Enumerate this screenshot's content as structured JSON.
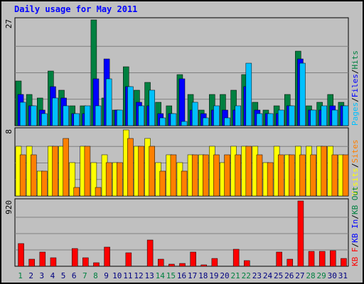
{
  "chart_data": {
    "type": "bar",
    "title": "Daily usage for May 2011",
    "categories": [
      "1",
      "2",
      "3",
      "4",
      "5",
      "6",
      "7",
      "8",
      "9",
      "10",
      "11",
      "12",
      "13",
      "14",
      "15",
      "16",
      "17",
      "18",
      "19",
      "20",
      "21",
      "22",
      "23",
      "24",
      "25",
      "26",
      "27",
      "28",
      "29",
      "30",
      "31"
    ],
    "weekend_days": [
      "1",
      "7",
      "8",
      "14",
      "15",
      "21",
      "22",
      "28",
      "29"
    ],
    "panels": [
      {
        "name": "hits-files-pages",
        "ymax_label": "27",
        "ylim": [
          0,
          27
        ],
        "legend": [
          "Pages",
          "/",
          "Files",
          "/",
          "Hits"
        ],
        "series": [
          {
            "name": "Hits",
            "color": "#008040",
            "values": [
              11.5,
              8,
              7,
              14,
              9,
              5,
              5,
              27,
              7,
              4,
              15,
              9,
              11,
              6,
              5,
              13,
              8,
              4,
              8,
              8,
              9,
              13,
              6,
              4,
              5,
              8,
              19,
              5,
              6,
              8,
              6
            ]
          },
          {
            "name": "Files",
            "color": "#0000ff",
            "values": [
              8,
              5,
              4,
              10,
              7,
              3,
              3,
              12,
              17,
              4,
              10,
              6,
              5,
              3,
              3,
              12,
              4,
              3,
              4,
              4,
              4,
              10,
              4,
              3,
              3,
              5,
              17,
              4,
              4,
              5,
              5
            ]
          },
          {
            "name": "Pages",
            "color": "#00c0ff",
            "values": [
              6,
              5,
              3,
              7,
              5,
              3,
              5,
              5,
              12,
              4,
              10,
              5,
              9,
              2,
              3,
              1,
              6,
              2,
              5,
              2,
              5,
              16,
              3,
              3,
              4,
              5,
              16,
              4,
              5,
              4,
              5
            ]
          }
        ]
      },
      {
        "name": "visits-sites",
        "ymax_label": "8",
        "ylim": [
          0,
          8
        ],
        "legend": [
          "Visits",
          "/",
          "Sites"
        ],
        "series": [
          {
            "name": "Visits",
            "color": "#ffff00",
            "values": [
              6,
              6,
              3,
              6,
              6,
              4,
              6,
              4,
              5,
              4,
              8,
              6,
              7,
              4,
              5,
              4,
              5,
              5,
              6,
              4,
              6,
              6,
              6,
              4,
              6,
              5,
              6,
              6,
              6,
              6,
              5
            ]
          },
          {
            "name": "Sites",
            "color": "#ff8000",
            "values": [
              5,
              5,
              3,
              6,
              7,
              1,
              6,
              1,
              4,
              4,
              7,
              6,
              6,
              3,
              5,
              3,
              5,
              5,
              5,
              5,
              5,
              6,
              5,
              4,
              5,
              5,
              5,
              5,
              6,
              5,
              5
            ]
          }
        ]
      },
      {
        "name": "kbytes",
        "ymax_label": "920",
        "ylim": [
          0,
          920
        ],
        "legend": [
          "KB F",
          "/",
          "KB In",
          "/",
          "KB Out"
        ],
        "series": [
          {
            "name": "KB F",
            "color": "#ff0000",
            "values": [
              315,
              100,
              200,
              120,
              0,
              250,
              120,
              50,
              270,
              0,
              190,
              0,
              365,
              100,
              30,
              40,
              200,
              20,
              110,
              0,
              235,
              80,
              0,
              0,
              200,
              95,
              920,
              210,
              210,
              220,
              105
            ]
          }
        ]
      }
    ],
    "colors": {
      "background": "#c0c0c0",
      "title": "#0000ff",
      "weekday_label": "#000080",
      "weekend_label": "#008040"
    }
  }
}
